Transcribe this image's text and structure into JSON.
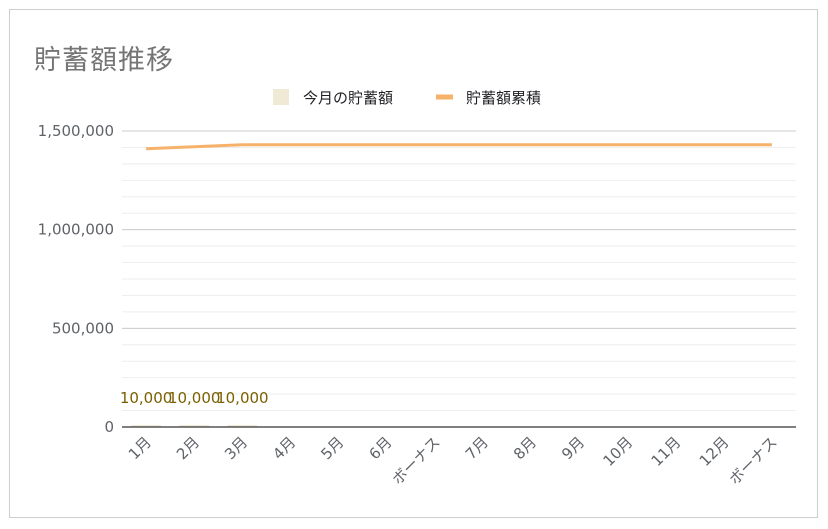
{
  "chart_data": {
    "type": "bar+line",
    "title": "貯蓄額推移",
    "categories": [
      "1月",
      "2月",
      "3月",
      "4月",
      "5月",
      "6月",
      "ボーナス",
      "7月",
      "8月",
      "9月",
      "10月",
      "11月",
      "12月",
      "ボーナス"
    ],
    "series": [
      {
        "name": "今月の貯蓄額",
        "type": "bar",
        "color": "#efe9d6",
        "values": [
          10000,
          10000,
          10000,
          0,
          0,
          0,
          0,
          0,
          0,
          0,
          0,
          0,
          0,
          0
        ],
        "data_labels": [
          "10,000",
          "10,000",
          "10,000"
        ]
      },
      {
        "name": "貯蓄額累積",
        "type": "line",
        "color": "#f6b26b",
        "values": [
          1410000,
          1420000,
          1430000,
          1430000,
          1430000,
          1430000,
          1430000,
          1430000,
          1430000,
          1430000,
          1430000,
          1430000,
          1430000,
          1430000
        ]
      }
    ],
    "ylim": [
      0,
      1500000
    ],
    "y_ticks": [
      "0",
      "500,000",
      "1,000,000",
      "1,500,000"
    ],
    "y_tick_values": [
      0,
      500000,
      1000000,
      1500000
    ],
    "legend_position": "top",
    "grid": true
  }
}
